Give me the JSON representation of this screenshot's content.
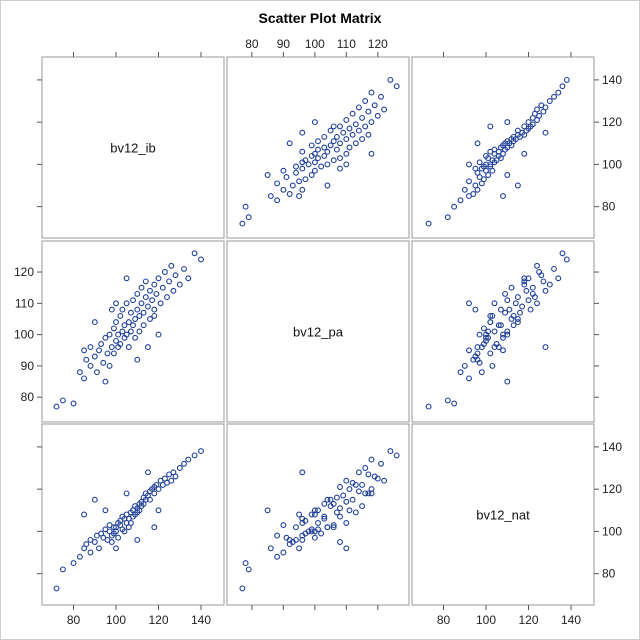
{
  "title": "Scatter Plot Matrix",
  "chart_data": {
    "type": "scatter",
    "title": "Scatter Plot Matrix",
    "variables": [
      "bv12_ib",
      "bv12_pa",
      "bv12_nat"
    ],
    "axis_ticks": {
      "bv12_ib": [
        80,
        100,
        120,
        140
      ],
      "bv12_pa": [
        80,
        90,
        100,
        110,
        120
      ],
      "bv12_nat": [
        80,
        100,
        120,
        140
      ]
    },
    "axis_ranges": {
      "bv12_ib": [
        68,
        148
      ],
      "bv12_pa": [
        74,
        128
      ],
      "bv12_nat": [
        68,
        148
      ]
    },
    "marker": {
      "shape": "open-circle",
      "color": "#1f3f9a"
    },
    "grid": false,
    "legend": "none",
    "points": [
      [
        72,
        77,
        73
      ],
      [
        75,
        79,
        82
      ],
      [
        80,
        78,
        85
      ],
      [
        83,
        88,
        88
      ],
      [
        85,
        86,
        92
      ],
      [
        86,
        92,
        94
      ],
      [
        88,
        90,
        90
      ],
      [
        88,
        96,
        96
      ],
      [
        90,
        93,
        95
      ],
      [
        91,
        88,
        98
      ],
      [
        92,
        95,
        92
      ],
      [
        93,
        97,
        99
      ],
      [
        94,
        91,
        97
      ],
      [
        95,
        99,
        101
      ],
      [
        96,
        94,
        96
      ],
      [
        97,
        100,
        100
      ],
      [
        97,
        90,
        103
      ],
      [
        98,
        96,
        98
      ],
      [
        99,
        102,
        99
      ],
      [
        99,
        94,
        102
      ],
      [
        100,
        98,
        100
      ],
      [
        100,
        104,
        102
      ],
      [
        101,
        96,
        104
      ],
      [
        101,
        100,
        97
      ],
      [
        102,
        106,
        103
      ],
      [
        102,
        97,
        105
      ],
      [
        103,
        101,
        101
      ],
      [
        103,
        108,
        107
      ],
      [
        104,
        99,
        100
      ],
      [
        104,
        103,
        106
      ],
      [
        105,
        110,
        104
      ],
      [
        105,
        100,
        108
      ],
      [
        106,
        104,
        102
      ],
      [
        106,
        96,
        106
      ],
      [
        107,
        107,
        109
      ],
      [
        107,
        101,
        104
      ],
      [
        108,
        111,
        110
      ],
      [
        108,
        103,
        107
      ],
      [
        109,
        105,
        112
      ],
      [
        109,
        99,
        108
      ],
      [
        110,
        108,
        111
      ],
      [
        110,
        113,
        109
      ],
      [
        111,
        106,
        113
      ],
      [
        111,
        101,
        110
      ],
      [
        112,
        110,
        114
      ],
      [
        112,
        115,
        112
      ],
      [
        113,
        107,
        116
      ],
      [
        113,
        103,
        113
      ],
      [
        114,
        112,
        115
      ],
      [
        114,
        117,
        118
      ],
      [
        115,
        109,
        117
      ],
      [
        116,
        114,
        119
      ],
      [
        116,
        105,
        115
      ],
      [
        117,
        111,
        120
      ],
      [
        118,
        116,
        118
      ],
      [
        118,
        108,
        121
      ],
      [
        119,
        113,
        122
      ],
      [
        120,
        118,
        120
      ],
      [
        121,
        110,
        124
      ],
      [
        122,
        115,
        122
      ],
      [
        123,
        120,
        125
      ],
      [
        124,
        112,
        123
      ],
      [
        125,
        117,
        127
      ],
      [
        126,
        122,
        124
      ],
      [
        127,
        114,
        128
      ],
      [
        128,
        119,
        126
      ],
      [
        130,
        116,
        130
      ],
      [
        132,
        121,
        132
      ],
      [
        134,
        118,
        134
      ],
      [
        137,
        126,
        136
      ],
      [
        140,
        124,
        138
      ],
      [
        95,
        85,
        110
      ],
      [
        100,
        110,
        92
      ],
      [
        90,
        104,
        115
      ],
      [
        110,
        92,
        96
      ],
      [
        120,
        100,
        110
      ],
      [
        105,
        118,
        118
      ],
      [
        98,
        108,
        95
      ],
      [
        85,
        95,
        108
      ],
      [
        115,
        96,
        128
      ],
      [
        118,
        106,
        102
      ]
    ]
  }
}
